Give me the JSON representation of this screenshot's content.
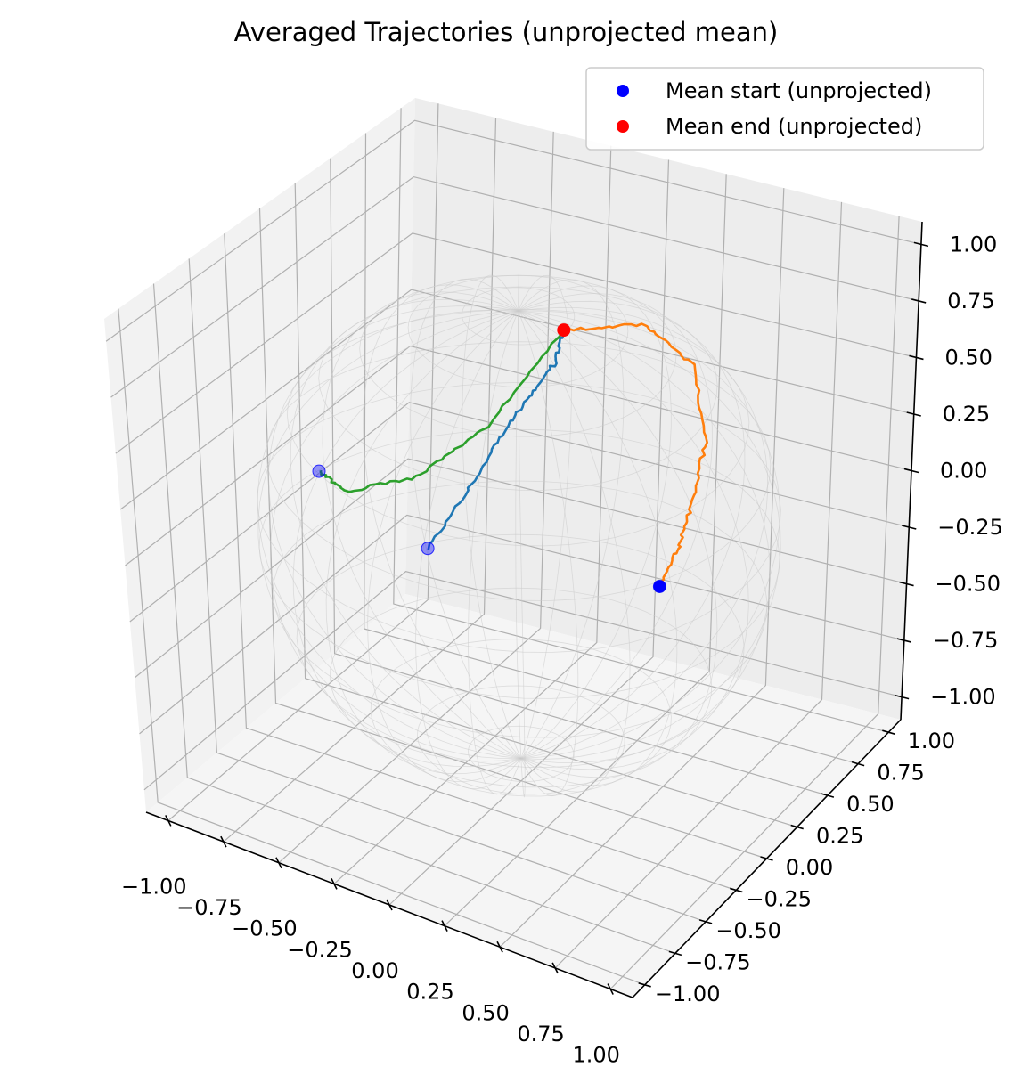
{
  "chart_data": {
    "type": "3d-line-scatter",
    "title": "Averaged Trajectories (unprojected mean)",
    "xlabel": "",
    "ylabel": "",
    "zlabel": "",
    "xlim": [
      -1.1,
      1.1
    ],
    "ylim": [
      -1.1,
      1.1
    ],
    "zlim": [
      -1.1,
      1.1
    ],
    "x_ticks": [
      -1.0,
      -0.75,
      -0.5,
      -0.25,
      0.0,
      0.25,
      0.5,
      0.75,
      1.0
    ],
    "y_ticks": [
      -1.0,
      -0.75,
      -0.5,
      -0.25,
      0.0,
      0.25,
      0.5,
      0.75,
      1.0
    ],
    "z_ticks": [
      -1.0,
      -0.75,
      -0.5,
      -0.25,
      0.0,
      0.25,
      0.5,
      0.75,
      1.0
    ],
    "x_tick_labels": [
      "−1.00",
      "−0.75",
      "−0.50",
      "−0.25",
      "0.00",
      "0.25",
      "0.50",
      "0.75",
      "1.00"
    ],
    "y_tick_labels": [
      "−1.00",
      "−0.75",
      "−0.50",
      "−0.25",
      "0.00",
      "0.25",
      "0.50",
      "0.75",
      "1.00"
    ],
    "z_tick_labels": [
      "−1.00",
      "−0.75",
      "−0.50",
      "−0.25",
      "0.00",
      "0.25",
      "0.50",
      "0.75",
      "1.00"
    ],
    "grid": true,
    "reference_surface": "unit wireframe sphere",
    "legend": {
      "placement": "top-right",
      "entries": [
        {
          "label": "Mean start (unprojected)",
          "color": "#0000ff"
        },
        {
          "label": "Mean end (unprojected)",
          "color": "#ff0000"
        }
      ]
    },
    "series": [
      {
        "color": "#1f77b4",
        "points": [
          [
            0.0,
            -0.7,
            0.3
          ],
          [
            0.05,
            -0.5,
            0.45
          ],
          [
            0.08,
            -0.3,
            0.6
          ],
          [
            0.1,
            -0.1,
            0.7
          ],
          [
            0.1,
            0.1,
            0.75
          ],
          [
            0.05,
            0.25,
            0.8
          ]
        ]
      },
      {
        "color": "#ff7f0e",
        "points": [
          [
            0.05,
            0.25,
            0.8
          ],
          [
            0.3,
            0.4,
            0.82
          ],
          [
            0.55,
            0.35,
            0.75
          ],
          [
            0.75,
            0.1,
            0.6
          ],
          [
            0.8,
            -0.1,
            0.45
          ],
          [
            0.8,
            -0.2,
            0.3
          ],
          [
            0.75,
            -0.25,
            0.15
          ]
        ]
      },
      {
        "color": "#2ca02c",
        "points": [
          [
            -0.7,
            -0.3,
            0.2
          ],
          [
            -0.5,
            -0.45,
            0.25
          ],
          [
            -0.25,
            -0.35,
            0.35
          ],
          [
            -0.05,
            -0.15,
            0.55
          ],
          [
            0.05,
            0.25,
            0.8
          ]
        ]
      }
    ],
    "start_points": [
      [
        0.0,
        -0.7,
        0.3
      ],
      [
        -0.7,
        -0.3,
        0.2
      ],
      [
        0.75,
        -0.25,
        0.15
      ]
    ],
    "start_points_alpha": [
      0.4,
      0.4,
      1.0
    ],
    "end_point": [
      0.05,
      0.25,
      0.8
    ],
    "colors": {
      "start": "#0000ff",
      "end": "#ff0000",
      "pane": "#f2f2f2",
      "grid": "#b0b0b0",
      "sphere": "#cccccc"
    }
  }
}
